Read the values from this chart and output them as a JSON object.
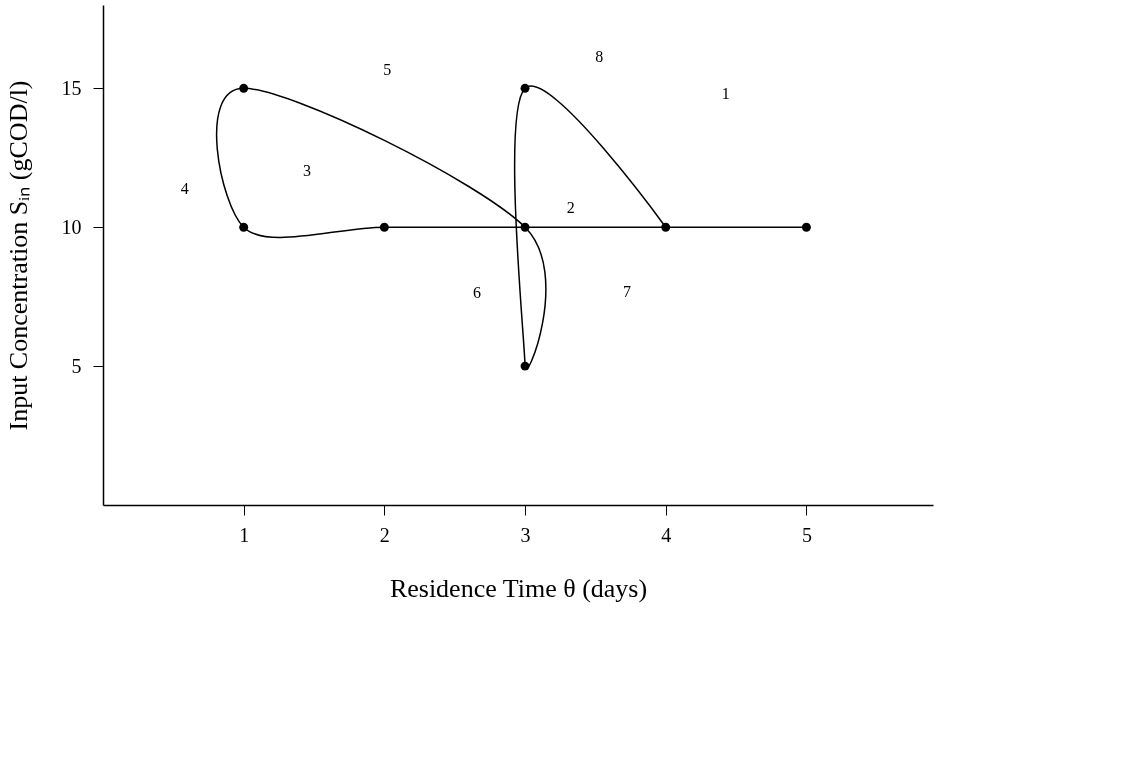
{
  "chart_data": {
    "type": "scatter",
    "xlabel": "Residence Time θ (days)",
    "ylabel": "Input Concentration Sᵢₙ (gCOD/l)",
    "xlim": [
      0,
      5.9
    ],
    "ylim": [
      0,
      18
    ],
    "xticks": [
      1,
      2,
      3,
      4,
      5
    ],
    "yticks": [
      5,
      10,
      15
    ],
    "grid": false,
    "series": [
      {
        "color": "#000000",
        "marker": "circle",
        "x": [
          1,
          1,
          2,
          3,
          3,
          3,
          4,
          5
        ],
        "values": [
          15,
          10,
          10,
          15,
          10,
          5,
          10,
          10
        ]
      },
      {
        "type": "line",
        "color": "#000000",
        "marker": "none",
        "x": [
          5,
          3,
          2,
          1,
          1,
          3,
          3,
          3,
          4
        ],
        "values": [
          10,
          10,
          10,
          10,
          15,
          10,
          5,
          15,
          10
        ]
      }
    ],
    "annotations": [
      "1",
      "2",
      "3",
      "4",
      "5",
      "6",
      "7",
      "8"
    ]
  }
}
